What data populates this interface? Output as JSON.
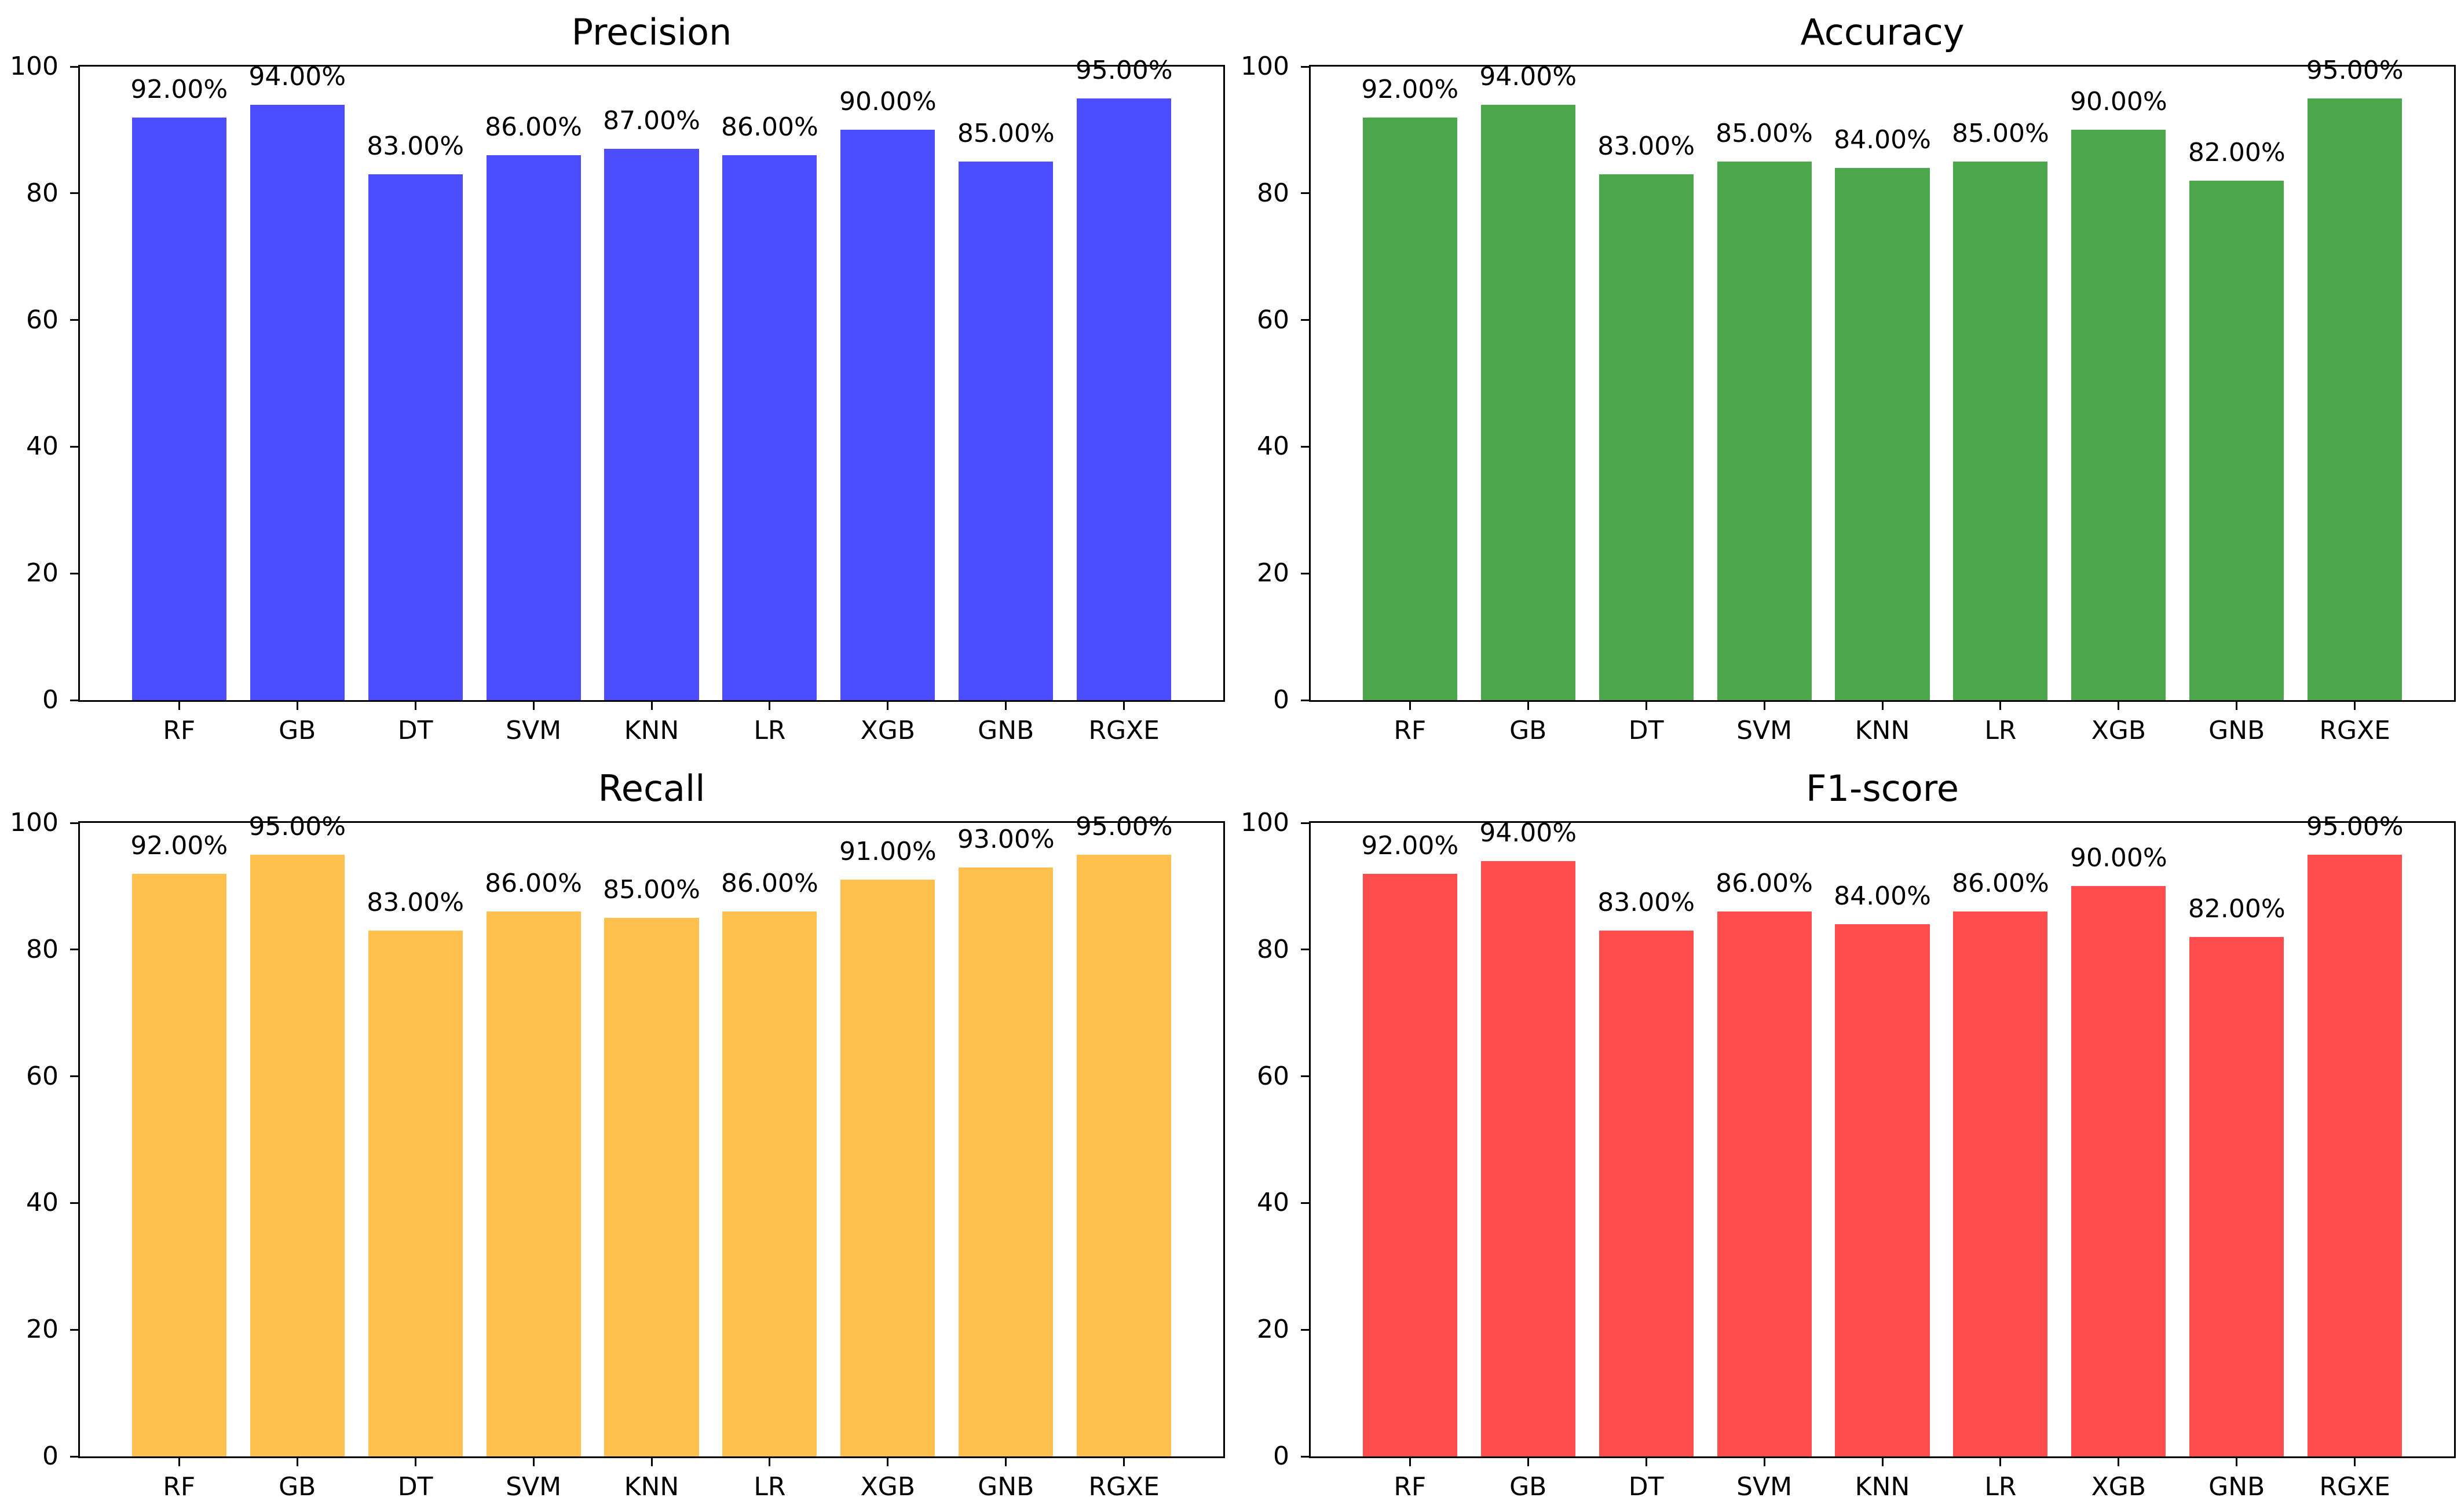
{
  "figure": {
    "background": "#ffffff",
    "axis_color": "#000000",
    "text_color": "#000000"
  },
  "chart_data": [
    {
      "type": "bar",
      "title": "Precision",
      "position": "top-left",
      "bar_color": "#4C4DFF",
      "categories": [
        "RF",
        "GB",
        "DT",
        "SVM",
        "KNN",
        "LR",
        "XGB",
        "GNB",
        "RGXE"
      ],
      "values": [
        92,
        94,
        83,
        86,
        87,
        86,
        90,
        85,
        95
      ],
      "bar_labels": [
        "92.00%",
        "94.00%",
        "83.00%",
        "86.00%",
        "87.00%",
        "86.00%",
        "90.00%",
        "85.00%",
        "95.00%"
      ],
      "xlabel": "",
      "ylabel": "",
      "ylim": [
        0,
        100
      ],
      "yticks": [
        "0",
        "20",
        "40",
        "60",
        "80",
        "100"
      ],
      "grid": false,
      "legend": null
    },
    {
      "type": "bar",
      "title": "Accuracy",
      "position": "top-right",
      "bar_color": "#4CA64C",
      "categories": [
        "RF",
        "GB",
        "DT",
        "SVM",
        "KNN",
        "LR",
        "XGB",
        "GNB",
        "RGXE"
      ],
      "values": [
        92,
        94,
        83,
        85,
        84,
        85,
        90,
        82,
        95
      ],
      "bar_labels": [
        "92.00%",
        "94.00%",
        "83.00%",
        "85.00%",
        "84.00%",
        "85.00%",
        "90.00%",
        "82.00%",
        "95.00%"
      ],
      "xlabel": "",
      "ylabel": "",
      "ylim": [
        0,
        100
      ],
      "yticks": [
        "0",
        "20",
        "40",
        "60",
        "80",
        "100"
      ],
      "grid": false,
      "legend": null
    },
    {
      "type": "bar",
      "title": "Recall",
      "position": "bottom-left",
      "bar_color": "#FFC04D",
      "categories": [
        "RF",
        "GB",
        "DT",
        "SVM",
        "KNN",
        "LR",
        "XGB",
        "GNB",
        "RGXE"
      ],
      "values": [
        92,
        95,
        83,
        86,
        85,
        86,
        91,
        93,
        95
      ],
      "bar_labels": [
        "92.00%",
        "95.00%",
        "83.00%",
        "86.00%",
        "85.00%",
        "86.00%",
        "91.00%",
        "93.00%",
        "95.00%"
      ],
      "xlabel": "",
      "ylabel": "",
      "ylim": [
        0,
        100
      ],
      "yticks": [
        "0",
        "20",
        "40",
        "60",
        "80",
        "100"
      ],
      "grid": false,
      "legend": null
    },
    {
      "type": "bar",
      "title": "F1-score",
      "position": "bottom-right",
      "bar_color": "#FF4D4D",
      "categories": [
        "RF",
        "GB",
        "DT",
        "SVM",
        "KNN",
        "LR",
        "XGB",
        "GNB",
        "RGXE"
      ],
      "values": [
        92,
        94,
        83,
        86,
        84,
        86,
        90,
        82,
        95
      ],
      "bar_labels": [
        "92.00%",
        "94.00%",
        "83.00%",
        "86.00%",
        "84.00%",
        "86.00%",
        "90.00%",
        "82.00%",
        "95.00%"
      ],
      "xlabel": "",
      "ylabel": "",
      "ylim": [
        0,
        100
      ],
      "yticks": [
        "0",
        "20",
        "40",
        "60",
        "80",
        "100"
      ],
      "grid": false,
      "legend": null
    }
  ]
}
